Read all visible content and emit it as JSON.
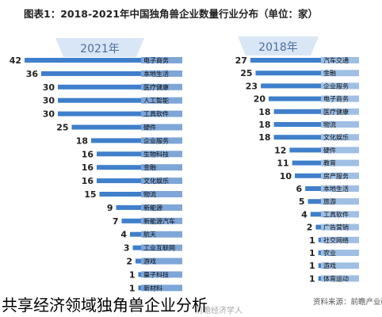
{
  "title": "图表1：2018-2021年中国独角兽企业数量行业分布（单位：家）",
  "source": "资料来源：前瞻产业研究院",
  "watermark": "前瞻经济学人",
  "caption": "共享经济领域独角兽企业分析",
  "colors": {
    "bar": "#3f7fcb",
    "panel_header": "#d9e6f5",
    "panel_text": "#4a6fa0",
    "label_box_2021": "#7ea6d8",
    "label_box_2018": "#9fbfe4",
    "caption": "#000000"
  },
  "chart_data": [
    {
      "type": "bar",
      "orientation": "horizontal",
      "panel_label": "2021年",
      "categories": [
        "电子商务",
        "本地生活",
        "医疗健康",
        "人工智能",
        "工具软件",
        "硬件",
        "企业服务",
        "生物科技",
        "金融",
        "文化娱乐",
        "物流",
        "新能源",
        "新能源汽车",
        "航天",
        "工业互联网",
        "游戏",
        "量子科技",
        "新材料"
      ],
      "values": [
        42,
        36,
        30,
        30,
        30,
        25,
        18,
        16,
        16,
        16,
        15,
        9,
        7,
        4,
        3,
        2,
        1,
        1
      ]
    },
    {
      "type": "bar",
      "orientation": "horizontal",
      "panel_label": "2018年",
      "categories": [
        "汽车交通",
        "金融",
        "企业服务",
        "电子商务",
        "医疗健康",
        "物流",
        "文化娱乐",
        "硬件",
        "教育",
        "房产服务",
        "本地生活",
        "旅游",
        "工具软件",
        "广告营销",
        "社交网络",
        "农业",
        "游戏",
        "体育运动"
      ],
      "values": [
        27,
        25,
        23,
        20,
        18,
        18,
        18,
        12,
        11,
        10,
        6,
        5,
        4,
        2,
        1,
        1,
        1,
        1
      ]
    }
  ]
}
